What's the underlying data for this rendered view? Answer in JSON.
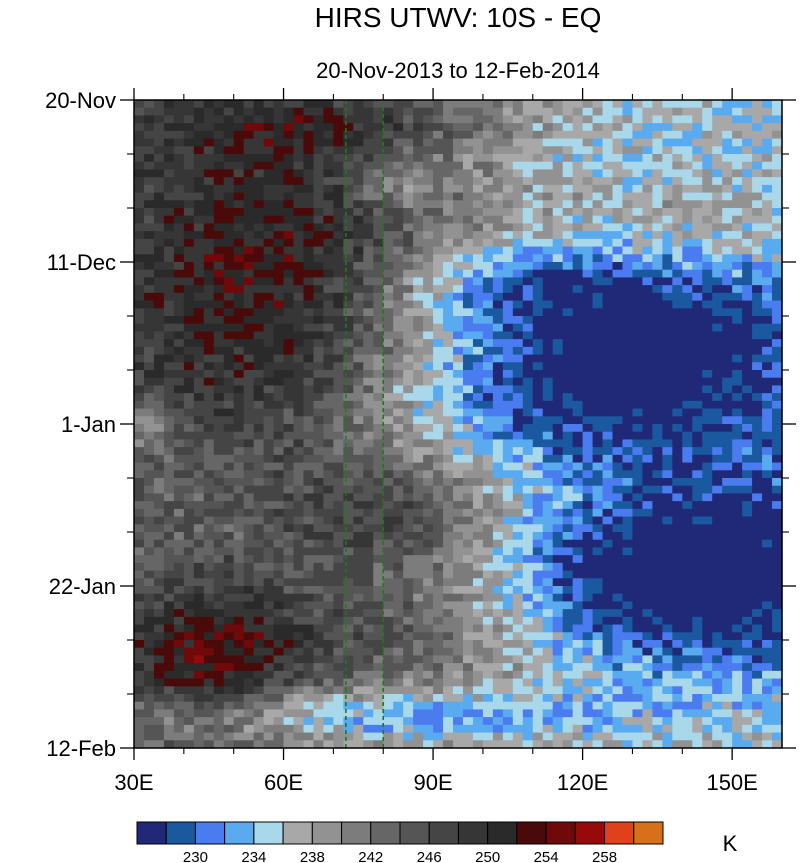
{
  "chart_data": {
    "type": "heatmap",
    "title": "HIRS UTWV: 10S - EQ",
    "subtitle": "20-Nov-2013 to 12-Feb-2014",
    "x_axis": {
      "range": [
        30,
        160
      ],
      "ticks": [
        {
          "value": 30,
          "label": "30E"
        },
        {
          "value": 60,
          "label": "60E"
        },
        {
          "value": 90,
          "label": "90E"
        },
        {
          "value": 120,
          "label": "120E"
        },
        {
          "value": 150,
          "label": "150E"
        }
      ]
    },
    "y_axis": {
      "range": [
        "2013-11-20",
        "2014-02-12"
      ],
      "direction": "top-to-bottom",
      "ticks": [
        {
          "value": "2013-11-20",
          "label": "20-Nov"
        },
        {
          "value": "2013-12-11",
          "label": "11-Dec"
        },
        {
          "value": "2014-01-01",
          "label": "1-Jan"
        },
        {
          "value": "2014-01-22",
          "label": "22-Jan"
        },
        {
          "value": "2014-02-12",
          "label": "12-Feb"
        }
      ]
    },
    "reference_lines": [
      {
        "axis": "x",
        "value": 72.5,
        "color": "#1e7a1e",
        "style": "dashed"
      },
      {
        "axis": "x",
        "value": 80,
        "color": "#1e7a1e",
        "style": "dashed"
      }
    ],
    "colorbar": {
      "unit": "K",
      "levels": [
        228,
        230,
        232,
        234,
        236,
        238,
        240,
        242,
        244,
        246,
        248,
        250,
        252,
        254,
        256,
        258,
        260
      ],
      "colors": [
        "#202878",
        "#1a58a0",
        "#4a7cf0",
        "#5aaaf0",
        "#a8d8ea",
        "#a8a8a8",
        "#929292",
        "#7c7c7c",
        "#666666",
        "#555555",
        "#454545",
        "#363636",
        "#2a2a2a",
        "#4a0a0a",
        "#700a0a",
        "#980a0a",
        "#e0401a",
        "#d8701a"
      ],
      "labels": [
        {
          "value": 230,
          "label": "230"
        },
        {
          "value": 234,
          "label": "234"
        },
        {
          "value": 238,
          "label": "238"
        },
        {
          "value": 242,
          "label": "242"
        },
        {
          "value": 246,
          "label": "246"
        },
        {
          "value": 250,
          "label": "250"
        },
        {
          "value": 254,
          "label": "254"
        },
        {
          "value": 258,
          "label": "258"
        }
      ]
    }
  }
}
